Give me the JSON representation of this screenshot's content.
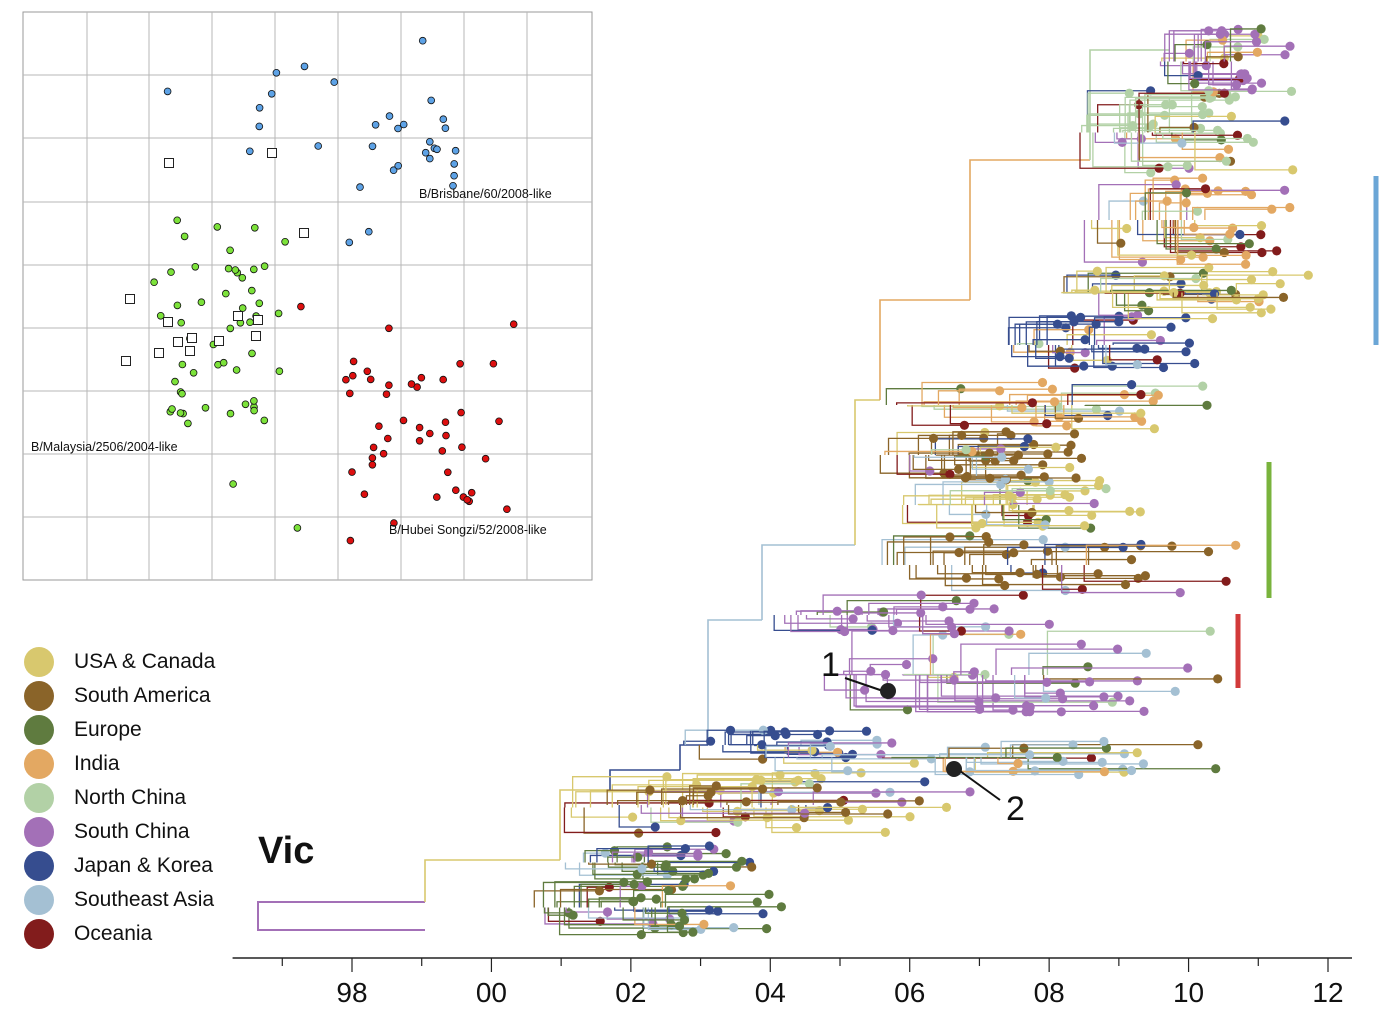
{
  "title": "Vic",
  "legend": [
    {
      "label": "USA & Canada",
      "color": "#d8c86e"
    },
    {
      "label": "South America",
      "color": "#8a6429"
    },
    {
      "label": "Europe",
      "color": "#5f7b3f"
    },
    {
      "label": "India",
      "color": "#e3a862"
    },
    {
      "label": "North China",
      "color": "#b2d1a6"
    },
    {
      "label": "South China",
      "color": "#a370b7"
    },
    {
      "label": "Japan & Korea",
      "color": "#364d8f"
    },
    {
      "label": "Southeast Asia",
      "color": "#a4c0d3"
    },
    {
      "label": "Oceania",
      "color": "#821c1c"
    }
  ],
  "axis": {
    "ticks": [
      "98",
      "00",
      "02",
      "04",
      "06",
      "08",
      "10",
      "12"
    ],
    "domain": [
      "1996",
      "2012"
    ]
  },
  "inset": {
    "labels": {
      "brisbane": "B/Brisbane/60/2008-like",
      "malaysia": "B/Malaysia/2506/2004-like",
      "hubei": "B/Hubei Songzi/52/2008-like"
    },
    "colors": {
      "brisbane": "#5da2e6",
      "malaysia": "#7ce23a",
      "hubei": "#dd0f0f",
      "reference": "#ffffff"
    }
  },
  "annotations": {
    "node1": "1",
    "node2": "2"
  },
  "clade_bars": [
    {
      "color": "#6ba6d6"
    },
    {
      "color": "#79b33c"
    },
    {
      "color": "#d23a3a"
    }
  ]
}
